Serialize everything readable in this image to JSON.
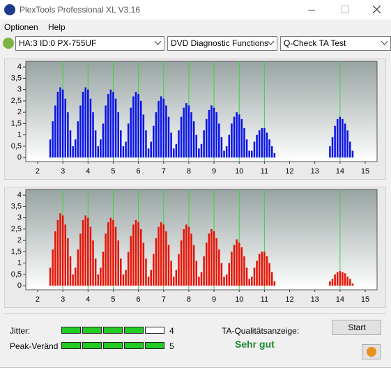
{
  "window": {
    "title": "PlexTools Professional XL V3.16",
    "menu": [
      "Optionen",
      "Help"
    ],
    "toolbar": [
      "HA:3 ID:0  PX-755UF",
      "DVD Diagnostic Functions",
      "Q-Check TA Test"
    ]
  },
  "chart_data": [
    {
      "type": "histogram",
      "color": "#0a14e6",
      "marker_color": "#3cd23c",
      "xlim": [
        1.53,
        15.47
      ],
      "ylim": [
        -0.18,
        4.25
      ],
      "xticks": [
        2,
        3,
        4,
        5,
        6,
        7,
        8,
        9,
        10,
        11,
        12,
        13,
        14,
        15
      ],
      "yticks": [
        0,
        {
          "value": 0.5,
          "label": "0,5"
        },
        1,
        {
          "value": 1.5,
          "label": "1,5"
        },
        2,
        {
          "value": 2.5,
          "label": "2,5"
        },
        3,
        {
          "value": 3.5,
          "label": "3,5"
        },
        4
      ],
      "markers": [
        3,
        4,
        5,
        6,
        7,
        8,
        9,
        10,
        11,
        14
      ],
      "x": [
        2.5,
        2.6,
        2.7,
        2.8,
        2.9,
        3.0,
        3.1,
        3.2,
        3.3,
        3.4,
        3.5,
        3.6,
        3.7,
        3.8,
        3.9,
        4.0,
        4.1,
        4.2,
        4.3,
        4.4,
        4.5,
        4.6,
        4.7,
        4.8,
        4.9,
        5.0,
        5.1,
        5.2,
        5.3,
        5.4,
        5.5,
        5.6,
        5.7,
        5.8,
        5.9,
        6.0,
        6.1,
        6.2,
        6.3,
        6.4,
        6.5,
        6.6,
        6.7,
        6.8,
        6.9,
        7.0,
        7.1,
        7.2,
        7.3,
        7.4,
        7.5,
        7.6,
        7.7,
        7.8,
        7.9,
        8.0,
        8.1,
        8.2,
        8.3,
        8.4,
        8.5,
        8.6,
        8.7,
        8.8,
        8.9,
        9.0,
        9.1,
        9.2,
        9.3,
        9.4,
        9.5,
        9.6,
        9.7,
        9.8,
        9.9,
        10.0,
        10.1,
        10.2,
        10.3,
        10.4,
        10.5,
        10.6,
        10.7,
        10.8,
        10.9,
        11.0,
        11.1,
        11.2,
        11.3,
        11.4,
        13.6,
        13.7,
        13.8,
        13.9,
        14.0,
        14.1,
        14.2,
        14.3,
        14.4,
        14.5
      ],
      "values": [
        0.8,
        1.6,
        2.3,
        2.9,
        3.1,
        3.0,
        2.6,
        2.0,
        1.2,
        0.5,
        0.8,
        1.6,
        2.3,
        2.9,
        3.1,
        3.0,
        2.6,
        2.0,
        1.2,
        0.5,
        0.8,
        1.5,
        2.3,
        2.8,
        3.0,
        2.9,
        2.6,
        2.0,
        1.2,
        0.5,
        0.7,
        1.5,
        2.2,
        2.7,
        2.9,
        2.8,
        2.5,
        1.9,
        1.2,
        0.4,
        0.7,
        1.4,
        2.0,
        2.5,
        2.7,
        2.6,
        2.3,
        1.8,
        1.1,
        0.4,
        0.6,
        1.2,
        1.8,
        2.2,
        2.4,
        2.3,
        2.0,
        1.6,
        1.0,
        0.4,
        0.6,
        1.2,
        1.7,
        2.1,
        2.3,
        2.2,
        2.0,
        1.5,
        0.9,
        0.3,
        0.5,
        1.0,
        1.5,
        1.8,
        2.0,
        1.9,
        1.7,
        1.3,
        0.8,
        0.3,
        0.3,
        0.7,
        1.0,
        1.2,
        1.3,
        1.3,
        1.1,
        0.8,
        0.5,
        0.2,
        0.5,
        0.9,
        1.4,
        1.7,
        1.8,
        1.7,
        1.5,
        1.2,
        0.7,
        0.3
      ]
    },
    {
      "type": "histogram",
      "color": "#e61405",
      "marker_color": "#3cd23c",
      "xlim": [
        1.53,
        15.47
      ],
      "ylim": [
        -0.18,
        4.25
      ],
      "xticks": [
        2,
        3,
        4,
        5,
        6,
        7,
        8,
        9,
        10,
        11,
        12,
        13,
        14,
        15
      ],
      "yticks": [
        0,
        {
          "value": 0.5,
          "label": "0,5"
        },
        1,
        {
          "value": 1.5,
          "label": "1,5"
        },
        2,
        {
          "value": 2.5,
          "label": "2,5"
        },
        3,
        {
          "value": 3.5,
          "label": "3,5"
        },
        4
      ],
      "markers": [
        3,
        4,
        5,
        6,
        7,
        8,
        9,
        10,
        11,
        14
      ],
      "x": [
        2.5,
        2.6,
        2.7,
        2.8,
        2.9,
        3.0,
        3.1,
        3.2,
        3.3,
        3.4,
        3.5,
        3.6,
        3.7,
        3.8,
        3.9,
        4.0,
        4.1,
        4.2,
        4.3,
        4.4,
        4.5,
        4.6,
        4.7,
        4.8,
        4.9,
        5.0,
        5.1,
        5.2,
        5.3,
        5.4,
        5.5,
        5.6,
        5.7,
        5.8,
        5.9,
        6.0,
        6.1,
        6.2,
        6.3,
        6.4,
        6.5,
        6.6,
        6.7,
        6.8,
        6.9,
        7.0,
        7.1,
        7.2,
        7.3,
        7.4,
        7.5,
        7.6,
        7.7,
        7.8,
        7.9,
        8.0,
        8.1,
        8.2,
        8.3,
        8.4,
        8.5,
        8.6,
        8.7,
        8.8,
        8.9,
        9.0,
        9.1,
        9.2,
        9.3,
        9.4,
        9.5,
        9.6,
        9.7,
        9.8,
        9.9,
        10.0,
        10.1,
        10.2,
        10.3,
        10.4,
        10.5,
        10.6,
        10.7,
        10.8,
        10.9,
        11.0,
        11.1,
        11.2,
        11.3,
        11.4,
        13.6,
        13.7,
        13.8,
        13.9,
        14.0,
        14.1,
        14.2,
        14.3,
        14.4,
        14.5
      ],
      "values": [
        0.8,
        1.6,
        2.4,
        2.9,
        3.2,
        3.1,
        2.7,
        2.1,
        1.3,
        0.5,
        0.8,
        1.6,
        2.3,
        2.9,
        3.1,
        3.0,
        2.6,
        2.0,
        1.2,
        0.5,
        0.8,
        1.5,
        2.3,
        2.8,
        3.0,
        2.9,
        2.6,
        2.0,
        1.2,
        0.5,
        0.7,
        1.5,
        2.2,
        2.7,
        2.9,
        2.8,
        2.5,
        1.9,
        1.2,
        0.4,
        0.7,
        1.4,
        2.1,
        2.6,
        2.8,
        2.7,
        2.4,
        1.8,
        1.1,
        0.4,
        0.7,
        1.4,
        2.0,
        2.5,
        2.7,
        2.6,
        2.3,
        1.8,
        1.1,
        0.4,
        0.6,
        1.3,
        1.9,
        2.3,
        2.5,
        2.4,
        2.1,
        1.6,
        1.0,
        0.4,
        0.5,
        1.0,
        1.5,
        1.8,
        2.05,
        1.9,
        1.7,
        1.3,
        0.8,
        0.3,
        0.4,
        0.8,
        1.1,
        1.4,
        1.5,
        1.5,
        1.3,
        1.0,
        0.6,
        0.2,
        0.2,
        0.3,
        0.5,
        0.6,
        0.65,
        0.6,
        0.55,
        0.4,
        0.3,
        0.1
      ]
    }
  ],
  "status": {
    "jitter_label": "Jitter:",
    "jitter": 4,
    "peak_label": "Peak-Veränd",
    "peak": 5,
    "quality_label": "TA-Qualitätsanzeige:",
    "quality": "Sehr gut",
    "start": "Start"
  }
}
